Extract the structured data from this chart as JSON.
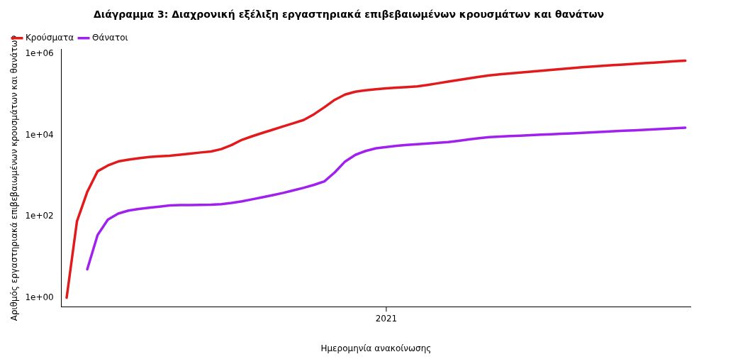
{
  "chart_data": {
    "type": "line",
    "title": "Διάγραμμα 3: Διαχρονική εξέλιξη εργαστηριακά επιβεβαιωμένων κρουσμάτων και θανάτων",
    "xlabel": "Ημερομηνία ανακοίνωσης",
    "ylabel": "Αριθμός εργαστηριακά επιβεβαιωμένων κρουσμάτων και θανάτων",
    "log": "y",
    "grid": false,
    "legend": "top left",
    "marker": "none",
    "line_style": "solid",
    "categories": [
      null,
      null,
      null,
      null,
      null,
      null,
      null,
      null,
      null,
      null,
      null,
      null,
      null,
      null,
      null,
      null,
      null,
      null,
      null,
      null,
      null,
      null,
      null,
      null,
      null,
      null,
      null,
      null,
      null,
      null,
      null,
      "2021",
      null,
      null,
      null,
      null,
      null,
      null,
      null,
      null,
      null,
      null,
      null,
      null,
      null,
      null,
      null,
      null,
      null,
      null,
      null,
      null,
      null,
      null,
      null,
      null,
      null,
      null,
      null,
      null,
      null
    ],
    "ylim": [
      0.6,
      1300000
    ],
    "yticks": [
      {
        "value": 1,
        "label": "1e+00"
      },
      {
        "value": 100,
        "label": "1e+02"
      },
      {
        "value": 10000,
        "label": "1e+04"
      },
      {
        "value": 1000000,
        "label": "1e+06"
      }
    ],
    "series": [
      {
        "name": "Κρούσματα",
        "color": "#e31a1c",
        "values": [
          1,
          76,
          405,
          1300,
          1810,
          2270,
          2520,
          2720,
          2930,
          3040,
          3140,
          3320,
          3550,
          3780,
          4000,
          4580,
          5780,
          7750,
          9500,
          11500,
          13800,
          16600,
          19900,
          24000,
          33200,
          49200,
          74900,
          100900,
          119000,
          128700,
          136200,
          144000,
          149400,
          155000,
          160800,
          174500,
          191500,
          210500,
          230500,
          252700,
          277000,
          300000,
          317000,
          336000,
          353600,
          371600,
          390300,
          410000,
          430800,
          452500,
          475300,
          497300,
          516000,
          535300,
          555300,
          576100,
          597700,
          620000,
          643300,
          667400,
          692400
        ]
      },
      {
        "name": "Θάνατοι",
        "color": "#a020f0",
        "values": [
          null,
          null,
          5,
          35,
          84,
          118,
          140,
          153,
          165,
          175,
          187,
          191,
          192,
          193,
          195,
          202,
          216,
          237,
          265,
          297,
          336,
          381,
          441,
          510,
          602,
          735,
          1220,
          2260,
          3300,
          4120,
          4800,
          5130,
          5490,
          5820,
          6060,
          6310,
          6570,
          6840,
          7330,
          7890,
          8510,
          9000,
          9270,
          9550,
          9810,
          10070,
          10350,
          10630,
          10920,
          11210,
          11510,
          11840,
          12190,
          12540,
          12910,
          13290,
          13690,
          14090,
          14510,
          14930,
          15370
        ]
      }
    ]
  }
}
